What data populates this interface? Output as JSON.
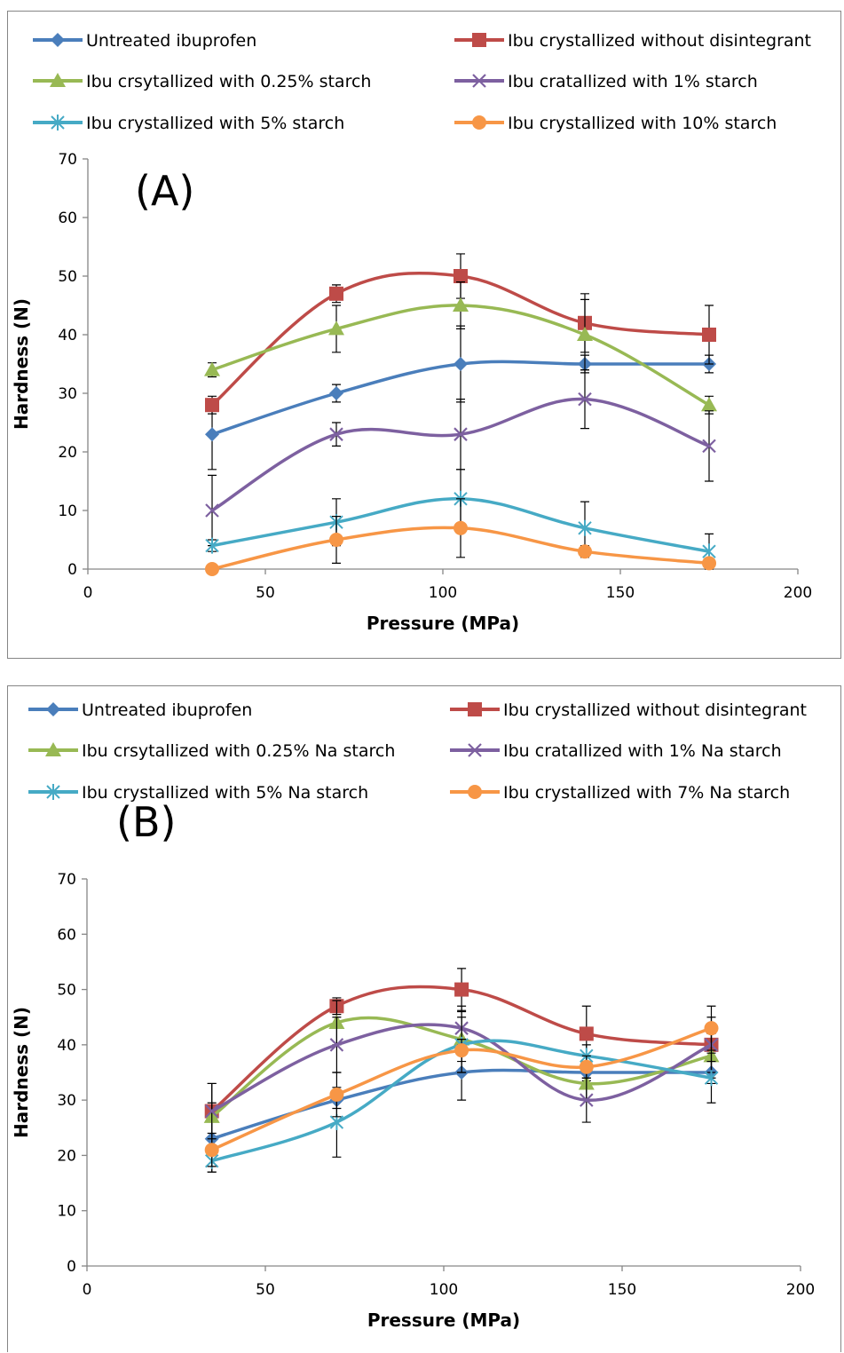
{
  "chart_data": [
    {
      "type": "line",
      "panel_label": "(A)",
      "xlabel": "Pressure (MPa)",
      "ylabel": "Hardness (N)",
      "xlim": [
        0,
        200
      ],
      "ylim": [
        0,
        70
      ],
      "xticks": [
        0,
        50,
        100,
        150,
        200
      ],
      "yticks": [
        0,
        10,
        20,
        30,
        40,
        50,
        60,
        70
      ],
      "grid": false,
      "legend_position": "top",
      "smoothed": true,
      "x": [
        35,
        70,
        105,
        140,
        175
      ],
      "series": [
        {
          "name": "Untreated ibuprofen",
          "color": "#4a7ebb",
          "marker": "diamond",
          "values": [
            23,
            30,
            35,
            35,
            35
          ],
          "error": [
            6,
            1.5,
            6.5,
            1.5,
            1.5
          ]
        },
        {
          "name": "Ibu crystallized without disintegrant",
          "color": "#be4b48",
          "marker": "square",
          "values": [
            28,
            47,
            50,
            42,
            40
          ],
          "error": [
            1.5,
            1.5,
            3.8,
            5,
            5
          ]
        },
        {
          "name": "Ibu crsytallized with 0.25% starch",
          "color": "#98b954",
          "marker": "triangle",
          "values": [
            34,
            41,
            45,
            40,
            28
          ],
          "error": [
            1.2,
            4,
            4,
            6,
            1.5
          ]
        },
        {
          "name": "Ibu cratallized with 1% starch",
          "color": "#7d60a0",
          "marker": "x",
          "values": [
            10,
            23,
            23,
            29,
            21
          ],
          "error": [
            6,
            2,
            6,
            5,
            6
          ]
        },
        {
          "name": "Ibu crystallized with 5% starch",
          "color": "#46aac5",
          "marker": "star",
          "values": [
            4,
            8,
            12,
            7,
            3
          ],
          "error": [
            1,
            4,
            5,
            4.5,
            3
          ]
        },
        {
          "name": "Ibu crystallized with 10% starch",
          "color": "#f79646",
          "marker": "circle",
          "values": [
            0,
            5,
            7,
            3,
            1
          ],
          "error": [
            0,
            4,
            5,
            1,
            0.5
          ]
        }
      ]
    },
    {
      "type": "line",
      "panel_label": "(B)",
      "xlabel": "Pressure (MPa)",
      "ylabel": "Hardness (N)",
      "xlim": [
        0,
        200
      ],
      "ylim": [
        0,
        70
      ],
      "xticks": [
        0,
        50,
        100,
        150,
        200
      ],
      "yticks": [
        0,
        10,
        20,
        30,
        40,
        50,
        60,
        70
      ],
      "grid": false,
      "legend_position": "top",
      "smoothed": true,
      "x": [
        35,
        70,
        105,
        140,
        175
      ],
      "series": [
        {
          "name": "Untreated ibuprofen",
          "color": "#4a7ebb",
          "marker": "diamond",
          "values": [
            23,
            30,
            35,
            35,
            35
          ],
          "error": [
            6,
            1.5,
            5,
            1.5,
            2
          ]
        },
        {
          "name": "Ibu crystallized without disintegrant",
          "color": "#be4b48",
          "marker": "square",
          "values": [
            28,
            47,
            50,
            42,
            40
          ],
          "error": [
            1.5,
            1.5,
            3.8,
            5,
            5
          ]
        },
        {
          "name": "Ibu crsytallized with 0.25% Na starch",
          "color": "#98b954",
          "marker": "triangle",
          "values": [
            27,
            44,
            41,
            33,
            38
          ],
          "error": [
            6,
            4,
            6,
            3,
            4
          ]
        },
        {
          "name": "Ibu cratallized with 1%  Na starch",
          "color": "#7d60a0",
          "marker": "x",
          "values": [
            28,
            40,
            43,
            30,
            40
          ],
          "error": [
            5,
            5,
            3,
            4,
            3
          ]
        },
        {
          "name": "Ibu crystallized with 5% Na starch",
          "color": "#46aac5",
          "marker": "star",
          "values": [
            19,
            26,
            40,
            38,
            34
          ],
          "error": [
            2,
            6.3,
            5,
            2,
            4.5
          ]
        },
        {
          "name": "Ibu crystallized with 7% Na starch",
          "color": "#f79646",
          "marker": "circle",
          "values": [
            21,
            31,
            39,
            36,
            43
          ],
          "error": [
            3,
            4,
            2,
            2,
            4
          ]
        }
      ]
    }
  ]
}
